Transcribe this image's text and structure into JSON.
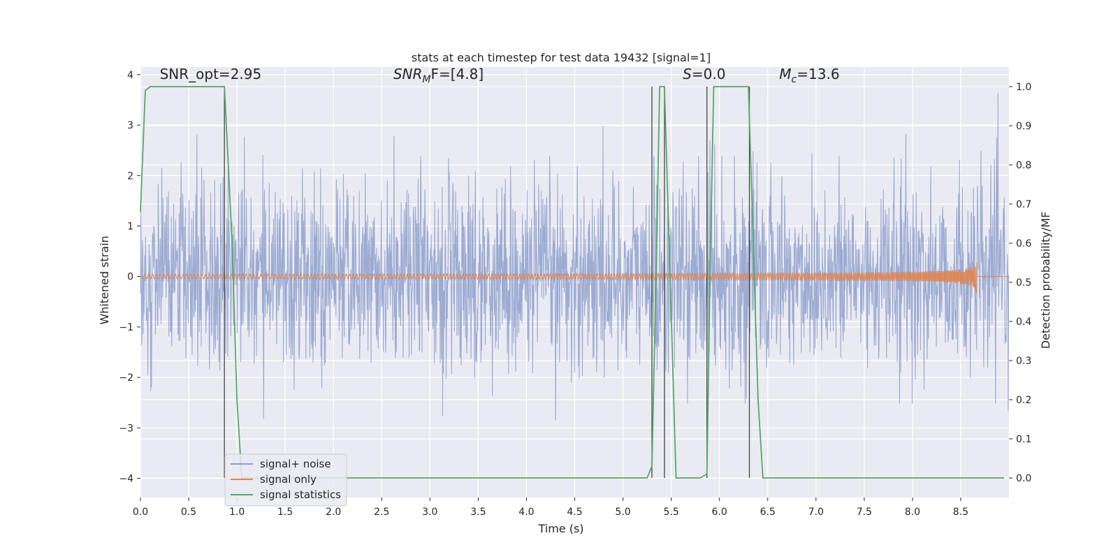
{
  "chart_data": {
    "type": "line",
    "title": "stats at each timestep for test data 19432 [signal=1]",
    "xlabel": "Time (s)",
    "ylabel_left": "Whitened strain",
    "ylabel_right": "Detection probability/MF",
    "xlim": [
      0,
      9.0
    ],
    "ylim_left": [
      -4.38,
      4.15
    ],
    "ylim_right": [
      -0.05,
      1.05
    ],
    "x_ticks": [
      0.0,
      0.5,
      1.0,
      1.5,
      2.0,
      2.5,
      3.0,
      3.5,
      4.0,
      4.5,
      5.0,
      5.5,
      6.0,
      6.5,
      7.0,
      7.5,
      8.0,
      8.5
    ],
    "x_tick_labels": [
      "0.0",
      "0.5",
      "1.0",
      "1.5",
      "2.0",
      "2.5",
      "3.0",
      "3.5",
      "4.0",
      "4.5",
      "5.0",
      "5.5",
      "6.0",
      "6.5",
      "7.0",
      "7.5",
      "8.0",
      "8.5"
    ],
    "y_left_ticks": [
      -4,
      -3,
      -2,
      -1,
      0,
      1,
      2,
      3,
      4
    ],
    "y_left_tick_labels": [
      "−4",
      "−3",
      "−2",
      "−1",
      "0",
      "1",
      "2",
      "3",
      "4"
    ],
    "y_right_ticks": [
      0.0,
      0.1,
      0.2,
      0.3,
      0.4,
      0.5,
      0.6,
      0.7,
      0.8,
      0.9,
      1.0
    ],
    "y_right_tick_labels": [
      "0.0",
      "0.1",
      "0.2",
      "0.3",
      "0.4",
      "0.5",
      "0.6",
      "0.7",
      "0.8",
      "0.9",
      "1.0"
    ],
    "grid": true,
    "legend_position": "lower-left",
    "annotations": [
      {
        "x": 0.2,
        "y": 4.0,
        "plain": "SNR_opt=2.95"
      },
      {
        "x": 2.62,
        "y": 4.0,
        "prefix": "SNR",
        "sub": "M",
        "suffix": "F=[4.8]",
        "italic": true
      },
      {
        "x": 5.62,
        "y": 4.0,
        "prefix": "S",
        "suffix": "=0.0",
        "italic": true
      },
      {
        "x": 6.62,
        "y": 4.0,
        "prefix": "M",
        "sub": "c",
        "suffix": "=13.6",
        "italic": true
      }
    ],
    "vertical_markers": [
      0.87,
      5.3,
      5.43,
      5.87,
      6.31
    ],
    "series": [
      {
        "name": "signal+ noise",
        "axis": "left",
        "color": "#8ea0cc",
        "kind": "noise",
        "x_range": [
          0,
          9.0
        ],
        "sigma": 0.95,
        "n_samples": 2200
      },
      {
        "name": "signal only",
        "axis": "left",
        "color": "#dd8452",
        "kind": "chirp",
        "x_range": [
          0,
          8.67
        ],
        "peak_amplitude": 0.45
      },
      {
        "name": "signal statistics",
        "axis": "right",
        "color": "#55a868",
        "x": [
          0,
          0.05,
          0.1,
          0.2,
          0.5,
          0.87,
          0.95,
          1.0,
          1.05,
          1.2,
          2.0,
          3.0,
          4.0,
          5.0,
          5.25,
          5.3,
          5.35,
          5.38,
          5.43,
          5.49,
          5.55,
          5.65,
          5.8,
          5.87,
          5.9,
          5.94,
          6.0,
          6.3,
          6.35,
          6.4,
          6.45,
          7.0,
          8.0,
          8.95
        ],
        "y": [
          0.68,
          0.99,
          1.0,
          1.0,
          1.0,
          1.0,
          0.6,
          0.2,
          0.0,
          0.0,
          0.0,
          0.0,
          0.0,
          0.0,
          0.0,
          0.03,
          0.6,
          1.0,
          1.0,
          0.5,
          0.0,
          0.0,
          0.0,
          0.01,
          0.5,
          1.0,
          1.0,
          1.0,
          0.6,
          0.2,
          0.0,
          0.0,
          0.0,
          0.0
        ]
      }
    ]
  }
}
